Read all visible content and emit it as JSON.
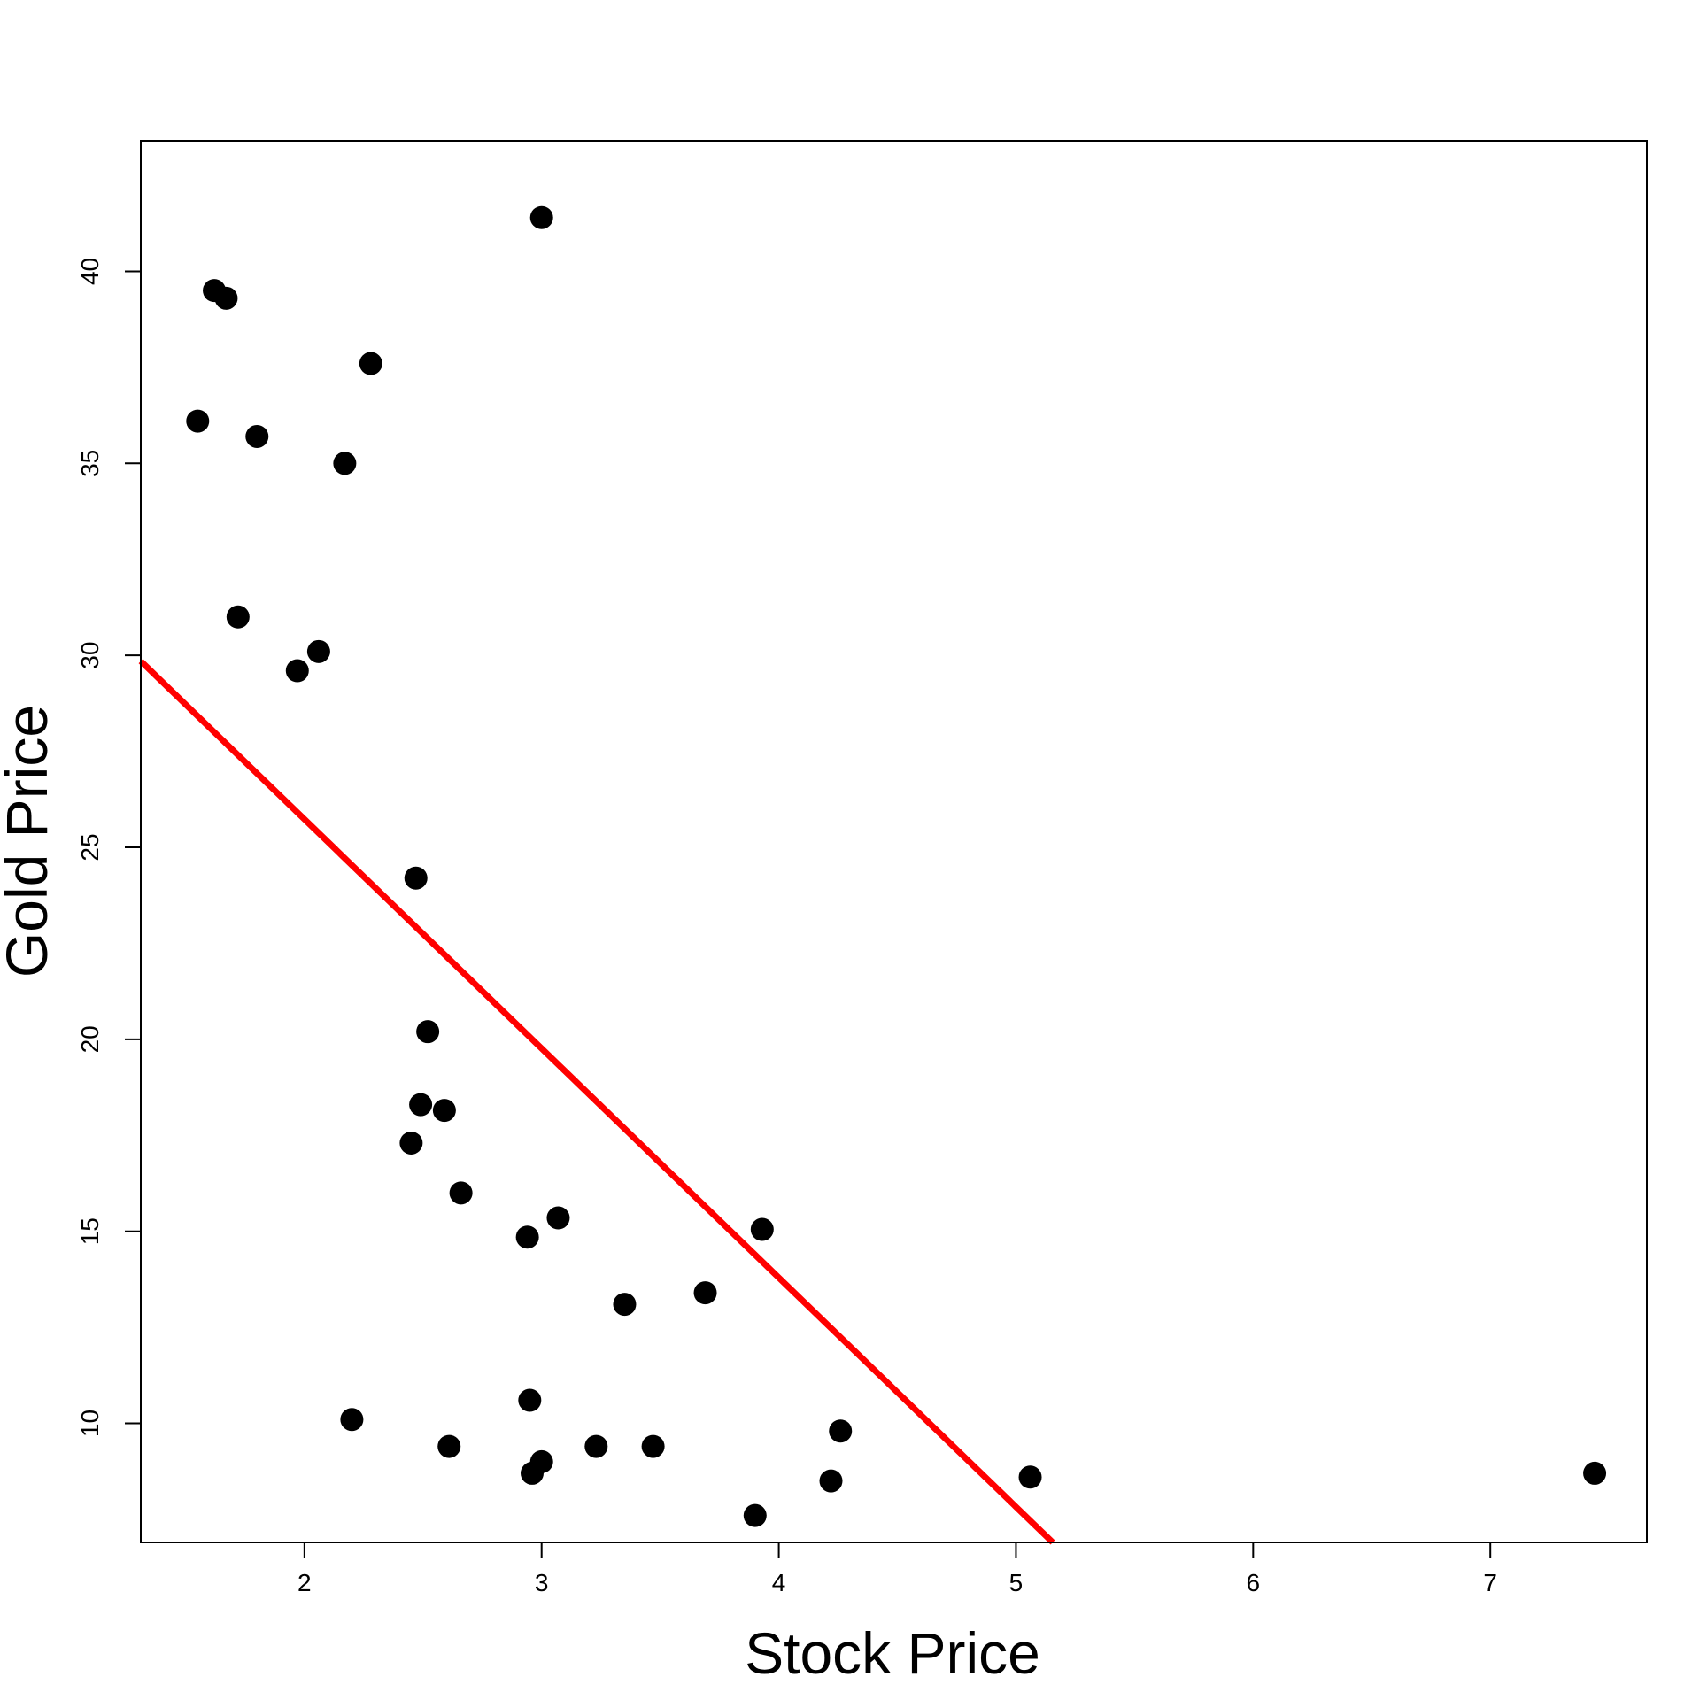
{
  "chart_data": {
    "type": "scatter",
    "title": "",
    "xlabel": "Stock Price",
    "ylabel": "Gold Price",
    "xlim": [
      1.31,
      7.66
    ],
    "ylim": [
      6.9,
      43.4
    ],
    "xticks": [
      2,
      3,
      4,
      5,
      6,
      7
    ],
    "yticks": [
      10,
      15,
      20,
      25,
      30,
      35,
      40
    ],
    "grid": false,
    "point_color": "#000000",
    "line_color": "#ff0000",
    "points": [
      {
        "x": 3.0,
        "y": 41.4
      },
      {
        "x": 1.62,
        "y": 39.5
      },
      {
        "x": 1.67,
        "y": 39.3
      },
      {
        "x": 2.28,
        "y": 37.6
      },
      {
        "x": 1.55,
        "y": 36.1
      },
      {
        "x": 1.8,
        "y": 35.7
      },
      {
        "x": 2.17,
        "y": 35.0
      },
      {
        "x": 1.72,
        "y": 31.0
      },
      {
        "x": 2.06,
        "y": 30.1
      },
      {
        "x": 1.97,
        "y": 29.6
      },
      {
        "x": 2.47,
        "y": 24.2
      },
      {
        "x": 2.52,
        "y": 20.2
      },
      {
        "x": 2.49,
        "y": 18.3
      },
      {
        "x": 2.59,
        "y": 18.15
      },
      {
        "x": 2.45,
        "y": 17.3
      },
      {
        "x": 2.66,
        "y": 16.0
      },
      {
        "x": 3.07,
        "y": 15.35
      },
      {
        "x": 2.94,
        "y": 14.85
      },
      {
        "x": 3.93,
        "y": 15.05
      },
      {
        "x": 3.69,
        "y": 13.4
      },
      {
        "x": 3.35,
        "y": 13.1
      },
      {
        "x": 2.95,
        "y": 10.6
      },
      {
        "x": 2.2,
        "y": 10.1
      },
      {
        "x": 4.26,
        "y": 9.8
      },
      {
        "x": 2.61,
        "y": 9.4
      },
      {
        "x": 3.23,
        "y": 9.4
      },
      {
        "x": 3.47,
        "y": 9.4
      },
      {
        "x": 3.0,
        "y": 9.0
      },
      {
        "x": 2.96,
        "y": 8.7
      },
      {
        "x": 4.22,
        "y": 8.5
      },
      {
        "x": 5.06,
        "y": 8.6
      },
      {
        "x": 7.44,
        "y": 8.7
      },
      {
        "x": 3.9,
        "y": 7.6
      }
    ],
    "regression_line": {
      "x": [
        1.31,
        5.155
      ],
      "y": [
        29.85,
        6.9
      ]
    }
  }
}
